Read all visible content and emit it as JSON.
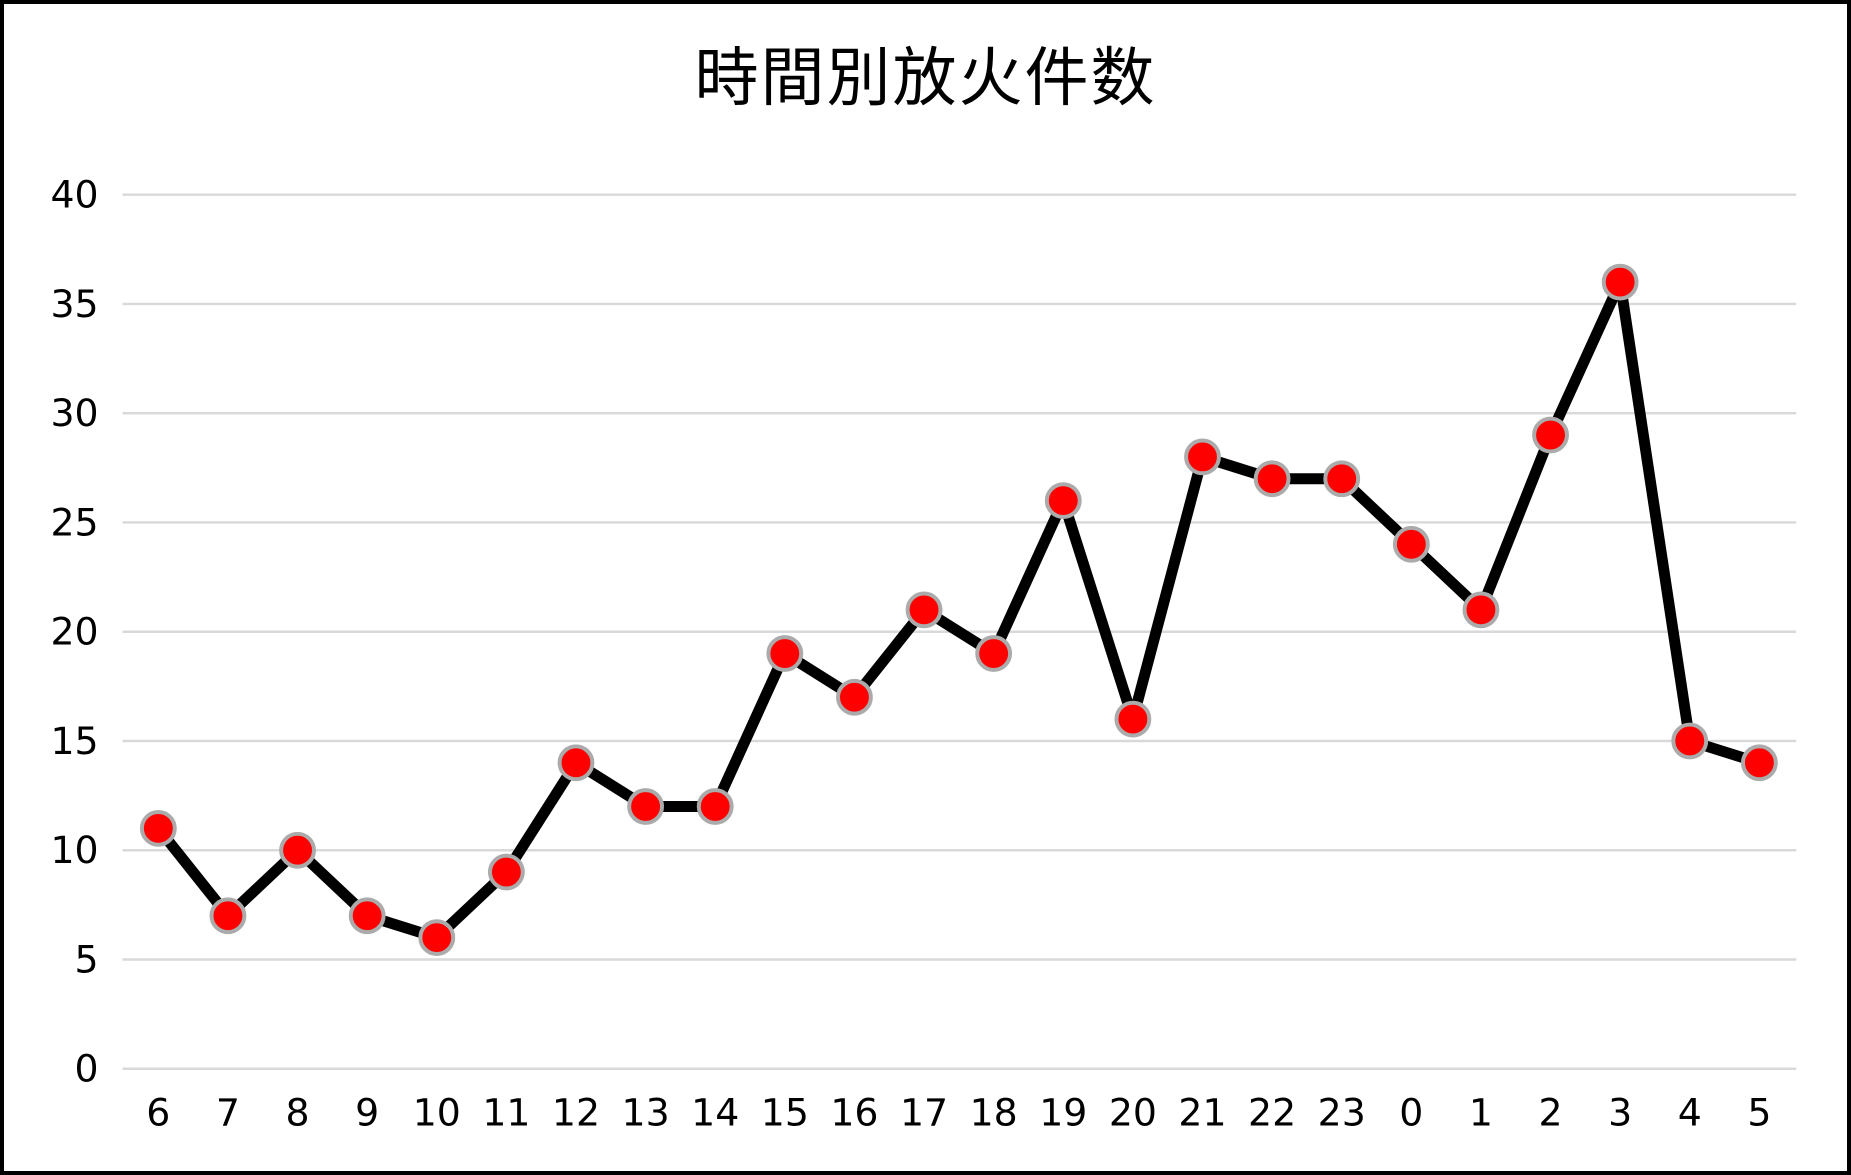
{
  "chart_data": {
    "type": "line",
    "title": "時間別放火件数",
    "categories": [
      "6",
      "7",
      "8",
      "9",
      "10",
      "11",
      "12",
      "13",
      "14",
      "15",
      "16",
      "17",
      "18",
      "19",
      "20",
      "21",
      "22",
      "23",
      "0",
      "1",
      "2",
      "3",
      "4",
      "5"
    ],
    "values": [
      11,
      7,
      10,
      7,
      6,
      9,
      14,
      12,
      12,
      19,
      17,
      21,
      19,
      26,
      16,
      28,
      27,
      27,
      24,
      21,
      29,
      36,
      15,
      14
    ],
    "xlabel": "",
    "ylabel": "",
    "ylim": [
      0,
      40
    ],
    "yticks": [
      0,
      5,
      10,
      15,
      20,
      25,
      30,
      35,
      40
    ],
    "grid": "horizontal-only",
    "legend_position": "none",
    "colors": {
      "line": "#000000",
      "marker_fill": "#fe0000",
      "marker_ring": "#ababab",
      "gridline": "#d9d9d9",
      "text": "#000000",
      "background": "#ffffff",
      "border": "#000000"
    }
  }
}
